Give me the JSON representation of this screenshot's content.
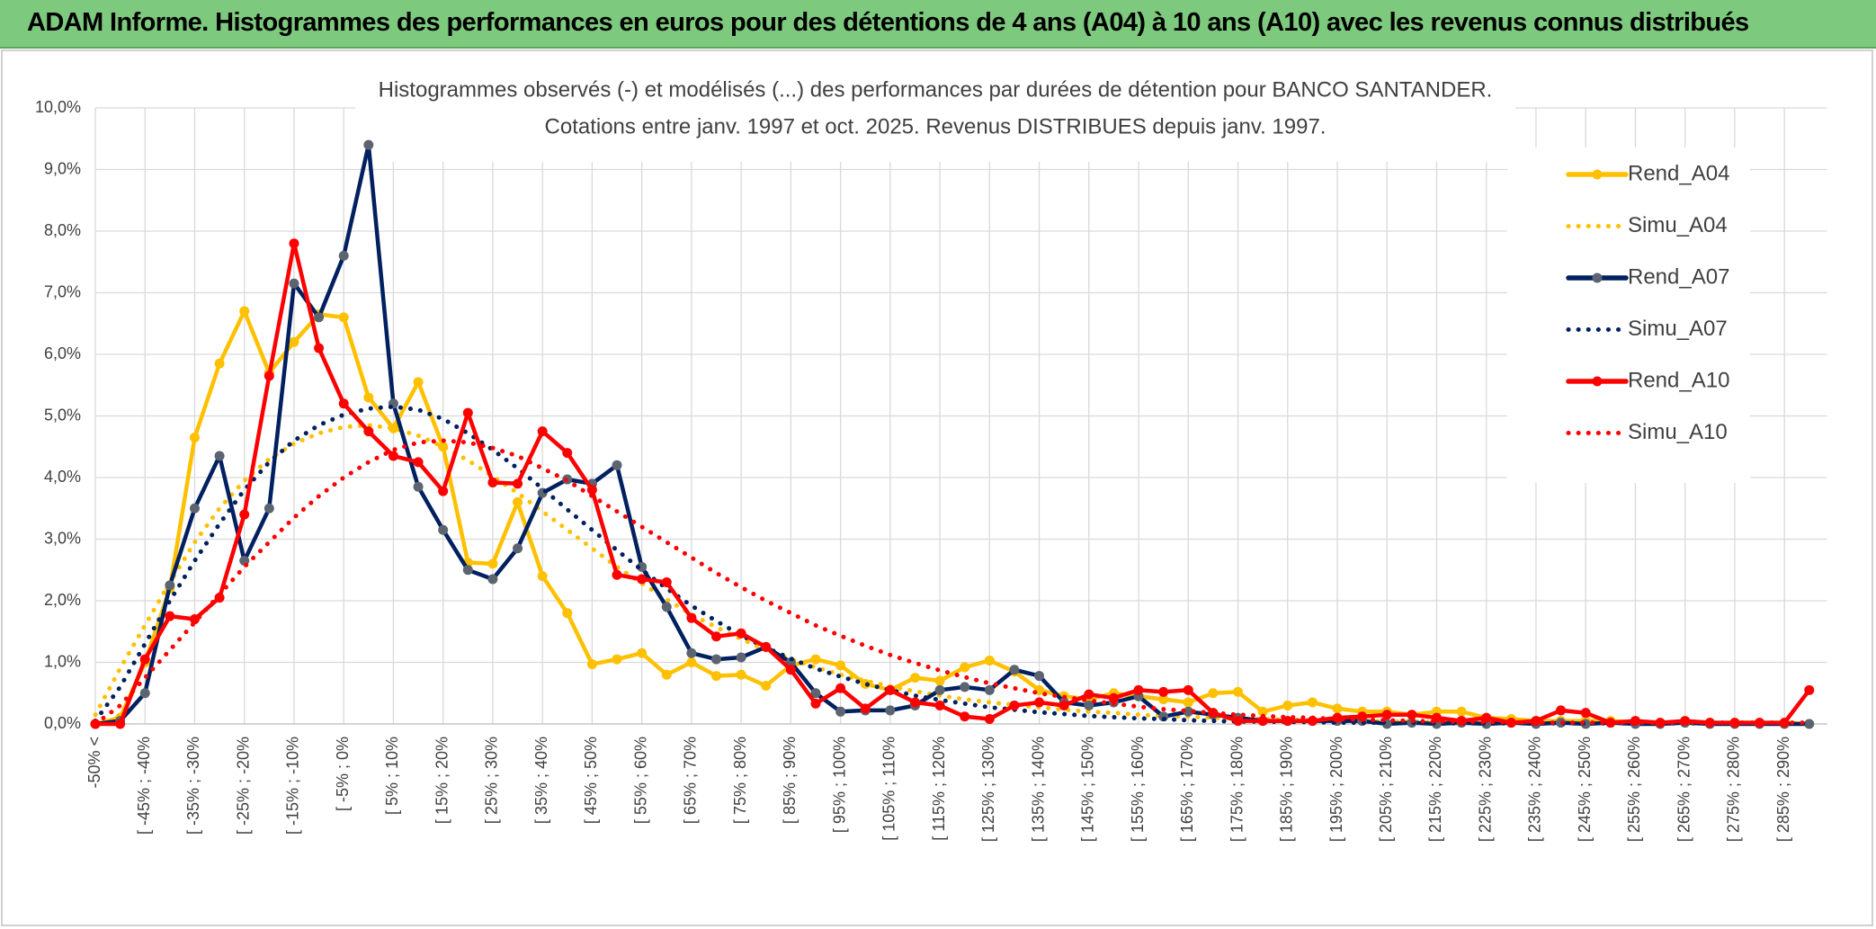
{
  "header": {
    "title": "ADAM Informe. Histogrammes des performances en euros pour des détentions de 4 ans (A04) à 10 ans (A10) avec les revenus connus distribués"
  },
  "chart_data": {
    "type": "line",
    "title": "Histogrammes observés (-) et modélisés (...) des performances par durées de détention pour BANCO SANTANDER.",
    "subtitle": "Cotations entre janv. 1997 et oct. 2025. Revenus DISTRIBUES depuis janv. 1997.",
    "categories": [
      "-50% <",
      null,
      "[ -45% ; -40%",
      null,
      "[ -35% ; -30%",
      null,
      "[ -25% ; -20%",
      null,
      "[ -15% ; -10%",
      null,
      "[ -5% ; 0%",
      null,
      "[ 5% ; 10%",
      null,
      "[ 15% ; 20%",
      null,
      "[ 25% ; 30%",
      null,
      "[ 35% ; 40%",
      null,
      "[ 45% ; 50%",
      null,
      "[ 55% ; 60%",
      null,
      "[ 65% ; 70%",
      null,
      "[ 75% ; 80%",
      null,
      "[ 85% ; 90%",
      null,
      "[ 95% ; 100%",
      null,
      "[ 105% ; 110%",
      null,
      "[ 115% ; 120%",
      null,
      "[ 125% ; 130%",
      null,
      "[ 135% ; 140%",
      null,
      "[ 145% ; 150%",
      null,
      "[ 155% ; 160%",
      null,
      "[ 165% ; 170%",
      null,
      "[ 175% ; 180%",
      null,
      "[ 185% ; 190%",
      null,
      "[ 195% ; 200%",
      null,
      "[ 205% ; 210%",
      null,
      "[ 215% ; 220%",
      null,
      "[ 225% ; 230%",
      null,
      "[ 235% ; 240%",
      null,
      "[ 245% ; 250%",
      null,
      "[ 255% ; 260%",
      null,
      "[ 265% ; 270%",
      null,
      "[ 275% ; 280%",
      null,
      "[ 285% ; 290%",
      null
    ],
    "series": [
      {
        "name": "Rend_A04",
        "color": "#ffc000",
        "style": "solid",
        "values": [
          0,
          0.1,
          1.0,
          2.2,
          4.65,
          5.85,
          6.7,
          5.7,
          6.2,
          6.65,
          6.6,
          5.3,
          4.8,
          5.55,
          4.5,
          2.62,
          2.6,
          3.6,
          2.4,
          1.8,
          0.97,
          1.05,
          1.15,
          0.8,
          1.0,
          0.78,
          0.8,
          0.62,
          0.95,
          1.05,
          0.95,
          0.65,
          0.55,
          0.75,
          0.7,
          0.92,
          1.03,
          0.85,
          0.55,
          0.45,
          0.4,
          0.5,
          0.45,
          0.4,
          0.35,
          0.5,
          0.52,
          0.2,
          0.3,
          0.35,
          0.25,
          0.2,
          0.2,
          0.15,
          0.2,
          0.2,
          0.1,
          0.08,
          0.05,
          0.05,
          0.05,
          0.05,
          0.03,
          0.02,
          0.02,
          0.02,
          0.02,
          0.02,
          0.02,
          0
        ]
      },
      {
        "name": "Simu_A04",
        "color": "#ffc000",
        "style": "dotted",
        "values": [
          0.15,
          0.9,
          1.6,
          2.3,
          2.95,
          3.5,
          3.95,
          4.3,
          4.55,
          4.72,
          4.82,
          4.85,
          4.8,
          4.68,
          4.5,
          4.28,
          4.02,
          3.75,
          3.45,
          3.15,
          2.85,
          2.55,
          2.28,
          2.02,
          1.78,
          1.57,
          1.38,
          1.2,
          1.05,
          0.92,
          0.8,
          0.7,
          0.61,
          0.53,
          0.46,
          0.4,
          0.35,
          0.31,
          0.27,
          0.23,
          0.2,
          0.18,
          0.15,
          0.13,
          0.12,
          0.1,
          0.09,
          0.08,
          0.07,
          0.06,
          0.05,
          0.05,
          0.04,
          0.04,
          0.03,
          0.03,
          0.03,
          0.02,
          0.02,
          0.02,
          0.02,
          0.02,
          0.02,
          0.02,
          0.02,
          0.01,
          0.01,
          0.01,
          0.01,
          0.01
        ]
      },
      {
        "name": "Rend_A07",
        "color": "#002060",
        "marker_color": "#5b6470",
        "style": "solid",
        "values": [
          0,
          0.05,
          0.5,
          2.25,
          3.5,
          4.35,
          2.65,
          3.5,
          7.15,
          6.6,
          7.6,
          9.4,
          5.2,
          3.85,
          3.15,
          2.5,
          2.35,
          2.85,
          3.75,
          3.97,
          3.9,
          4.2,
          2.55,
          1.9,
          1.15,
          1.05,
          1.08,
          1.25,
          1.0,
          0.5,
          0.2,
          0.22,
          0.22,
          0.3,
          0.55,
          0.6,
          0.55,
          0.88,
          0.78,
          0.35,
          0.3,
          0.35,
          0.45,
          0.12,
          0.2,
          0.15,
          0.1,
          0.05,
          0.05,
          0.05,
          0.05,
          0.05,
          0,
          0.02,
          0,
          0.02,
          0,
          0.02,
          0,
          0.02,
          0,
          0.02,
          0,
          0,
          0.02,
          0,
          0,
          0,
          0,
          0
        ]
      },
      {
        "name": "Simu_A07",
        "color": "#002060",
        "style": "dotted",
        "values": [
          0.05,
          0.6,
          1.3,
          2.0,
          2.65,
          3.25,
          3.8,
          4.25,
          4.6,
          4.85,
          5.02,
          5.12,
          5.15,
          5.1,
          4.95,
          4.72,
          4.45,
          4.15,
          3.82,
          3.48,
          3.15,
          2.82,
          2.5,
          2.2,
          1.92,
          1.67,
          1.44,
          1.24,
          1.06,
          0.9,
          0.77,
          0.65,
          0.55,
          0.46,
          0.39,
          0.33,
          0.27,
          0.23,
          0.19,
          0.16,
          0.13,
          0.11,
          0.09,
          0.08,
          0.06,
          0.05,
          0.04,
          0.04,
          0.03,
          0.03,
          0.02,
          0.02,
          0.02,
          0.02,
          0.01,
          0.01,
          0.01,
          0.01,
          0.01,
          0.01,
          0.01,
          0.01,
          0.01,
          0.01,
          0.01,
          0.01,
          0.01,
          0.01,
          0.01,
          0.01
        ]
      },
      {
        "name": "Rend_A10",
        "color": "#ff0000",
        "style": "solid",
        "values": [
          0,
          0,
          1.05,
          1.75,
          1.7,
          2.05,
          3.4,
          5.65,
          7.8,
          6.1,
          5.2,
          4.75,
          4.35,
          4.25,
          3.78,
          5.05,
          3.92,
          3.9,
          4.75,
          4.4,
          3.8,
          2.42,
          2.35,
          2.3,
          1.72,
          1.42,
          1.47,
          1.25,
          0.88,
          0.33,
          0.58,
          0.25,
          0.55,
          0.35,
          0.3,
          0.12,
          0.08,
          0.3,
          0.35,
          0.3,
          0.48,
          0.42,
          0.55,
          0.52,
          0.55,
          0.18,
          0.05,
          0.05,
          0.05,
          0.05,
          0.1,
          0.12,
          0.15,
          0.15,
          0.1,
          0.05,
          0.1,
          0.02,
          0.05,
          0.22,
          0.18,
          0.02,
          0.05,
          0.02,
          0.05,
          0.02,
          0.02,
          0.02,
          0.02,
          0.55
        ]
      },
      {
        "name": "Simu_A10",
        "color": "#ff0000",
        "style": "dotted",
        "values": [
          0,
          0.3,
          0.75,
          1.2,
          1.65,
          2.1,
          2.55,
          2.95,
          3.35,
          3.7,
          4.0,
          4.25,
          4.45,
          4.57,
          4.6,
          4.57,
          4.48,
          4.35,
          4.15,
          3.95,
          3.7,
          3.45,
          3.2,
          2.95,
          2.7,
          2.45,
          2.22,
          2.0,
          1.8,
          1.6,
          1.43,
          1.27,
          1.12,
          0.99,
          0.87,
          0.76,
          0.66,
          0.58,
          0.5,
          0.44,
          0.38,
          0.33,
          0.28,
          0.24,
          0.21,
          0.18,
          0.15,
          0.13,
          0.11,
          0.1,
          0.08,
          0.07,
          0.06,
          0.05,
          0.04,
          0.04,
          0.03,
          0.03,
          0.02,
          0.02,
          0.02,
          0.02,
          0.02,
          0.02,
          0.02,
          0.02,
          0.02,
          0.02,
          0.02,
          0.02
        ]
      }
    ],
    "ylim": [
      0,
      10
    ],
    "yticks": [
      {
        "value": 0,
        "label": "0,0%"
      },
      {
        "value": 1,
        "label": "1,0%"
      },
      {
        "value": 2,
        "label": "2,0%"
      },
      {
        "value": 3,
        "label": "3,0%"
      },
      {
        "value": 4,
        "label": "4,0%"
      },
      {
        "value": 5,
        "label": "5,0%"
      },
      {
        "value": 6,
        "label": "6,0%"
      },
      {
        "value": 7,
        "label": "7,0%"
      },
      {
        "value": 8,
        "label": "8,0%"
      },
      {
        "value": 9,
        "label": "9,0%"
      },
      {
        "value": 10,
        "label": "10,0%"
      }
    ],
    "grid": true,
    "legend": "right"
  }
}
